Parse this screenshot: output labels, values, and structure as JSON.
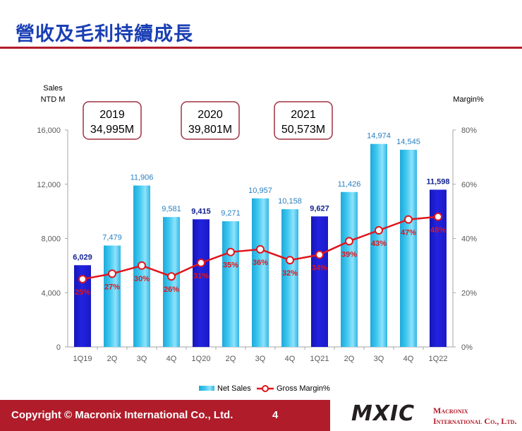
{
  "slide": {
    "title": "營收及毛利持續成長",
    "copyright": "Copyright © Macronix International Co., Ltd.",
    "page_number": "4",
    "logo_text": "MXIC",
    "company_line1": "Macronix",
    "company_line2": "International Co., Ltd."
  },
  "colors": {
    "accent": "#b01c2a",
    "title_blue": "#1a3fb4",
    "bar_light": "#3cc6ef",
    "bar_dark": "#2323e0",
    "line": "#e0161c",
    "label_light": "#2a7fc0",
    "label_dark": "#12228f"
  },
  "chart_data": {
    "type": "bar",
    "title": "",
    "categories": [
      "1Q19",
      "2Q",
      "3Q",
      "4Q",
      "1Q20",
      "2Q",
      "3Q",
      "4Q",
      "1Q21",
      "2Q",
      "3Q",
      "4Q",
      "1Q22"
    ],
    "highlight_indices": [
      0,
      4,
      8,
      12
    ],
    "y_left": {
      "label_line1": "Sales",
      "label_line2": "NTD M",
      "min": 0,
      "max": 16000,
      "ticks": [
        0,
        4000,
        8000,
        12000,
        16000
      ],
      "tick_labels": [
        "0",
        "4,000",
        "8,000",
        "12,000",
        "16,000"
      ]
    },
    "y_right": {
      "label": "Margin%",
      "min": 0,
      "max": 80,
      "ticks": [
        0,
        20,
        40,
        60,
        80
      ],
      "tick_labels": [
        "0%",
        "20%",
        "40%",
        "60%",
        "80%"
      ]
    },
    "series": [
      {
        "name": "Net Sales",
        "kind": "bar",
        "axis": "left",
        "values": [
          6029,
          7479,
          11906,
          9581,
          9415,
          9271,
          10957,
          10158,
          9627,
          11426,
          14974,
          14545,
          11598
        ],
        "labels": [
          "6,029",
          "7,479",
          "11,906",
          "9,581",
          "9,415",
          "9,271",
          "10,957",
          "10,158",
          "9,627",
          "11,426",
          "14,974",
          "14,545",
          "11,598"
        ]
      },
      {
        "name": "Gross Margin%",
        "kind": "line",
        "axis": "right",
        "values": [
          25,
          27,
          30,
          26,
          31,
          35,
          36,
          32,
          34,
          39,
          43,
          47,
          48
        ],
        "labels": [
          "25%",
          "27%",
          "30%",
          "26%",
          "31%",
          "35%",
          "36%",
          "32%",
          "34%",
          "39%",
          "43%",
          "47%",
          "48%"
        ]
      }
    ],
    "annual_boxes": [
      {
        "year": "2019",
        "total": "34,995M"
      },
      {
        "year": "2020",
        "total": "39,801M"
      },
      {
        "year": "2021",
        "total": "50,573M"
      }
    ],
    "legend": {
      "placement": "bottom",
      "items": [
        "Net Sales",
        "Gross Margin%"
      ]
    }
  }
}
